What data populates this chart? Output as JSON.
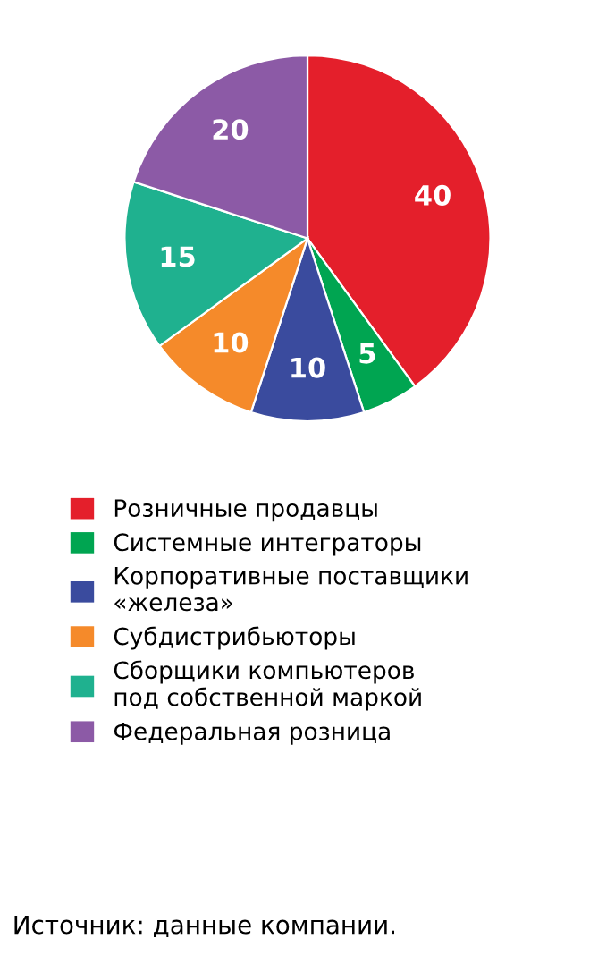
{
  "chart_data": {
    "type": "pie",
    "categories": [
      "Розничные продавцы",
      "Системные интеграторы",
      "Корпоративные поставщики\n«железа»",
      "Субдистрибьюторы",
      "Сборщики компьютеров\nпод собственной маркой",
      "Федеральная розница"
    ],
    "values": [
      40,
      5,
      10,
      10,
      15,
      20
    ],
    "colors": [
      "#e41f2b",
      "#00a551",
      "#3a4b9e",
      "#f58a2a",
      "#1fb18f",
      "#8c5aa6"
    ],
    "data_labels": true,
    "legend": "bottom",
    "annotations": [
      "Источник: данные компании."
    ]
  }
}
